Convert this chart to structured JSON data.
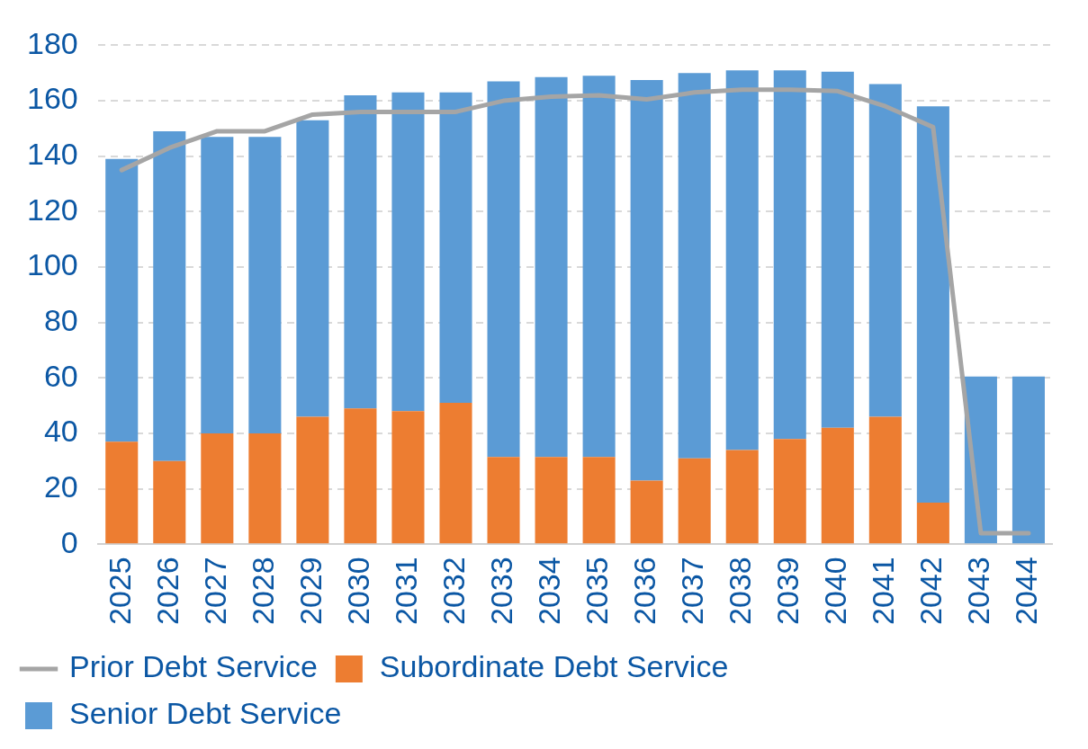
{
  "chart_data": {
    "type": "bar",
    "stacked": true,
    "categories": [
      "2025",
      "2026",
      "2027",
      "2028",
      "2029",
      "2030",
      "2031",
      "2032",
      "2033",
      "2034",
      "2035",
      "2036",
      "2037",
      "2038",
      "2039",
      "2040",
      "2041",
      "2042",
      "2043",
      "2044"
    ],
    "series": [
      {
        "name": "Subordinate Debt Service",
        "color": "#ed7d31",
        "values": [
          37,
          30,
          40,
          40,
          46,
          49,
          48,
          51,
          31.5,
          31.5,
          31.5,
          23,
          31,
          34,
          38,
          42,
          46,
          15,
          null,
          null
        ]
      },
      {
        "name": "Senior Debt Service",
        "color": "#5b9bd5",
        "values": [
          102,
          119,
          107,
          107,
          107,
          113,
          115,
          112,
          135.5,
          137,
          137.5,
          144.5,
          139,
          137,
          133,
          128.5,
          120,
          143,
          60.5,
          60.5
        ]
      },
      {
        "name": "Prior Debt Service",
        "type": "line",
        "color": "#a5a5a5",
        "marker": "none",
        "values": [
          135,
          143,
          149,
          149,
          155,
          156,
          156,
          156,
          160,
          161.5,
          162,
          160.5,
          163,
          164,
          164,
          163.5,
          158,
          150.5,
          4,
          4
        ]
      }
    ],
    "ylim": [
      0,
      180
    ],
    "yticks": [
      0,
      20,
      40,
      60,
      80,
      100,
      120,
      140,
      160,
      180
    ],
    "grid": "y",
    "legend": "bottom"
  }
}
